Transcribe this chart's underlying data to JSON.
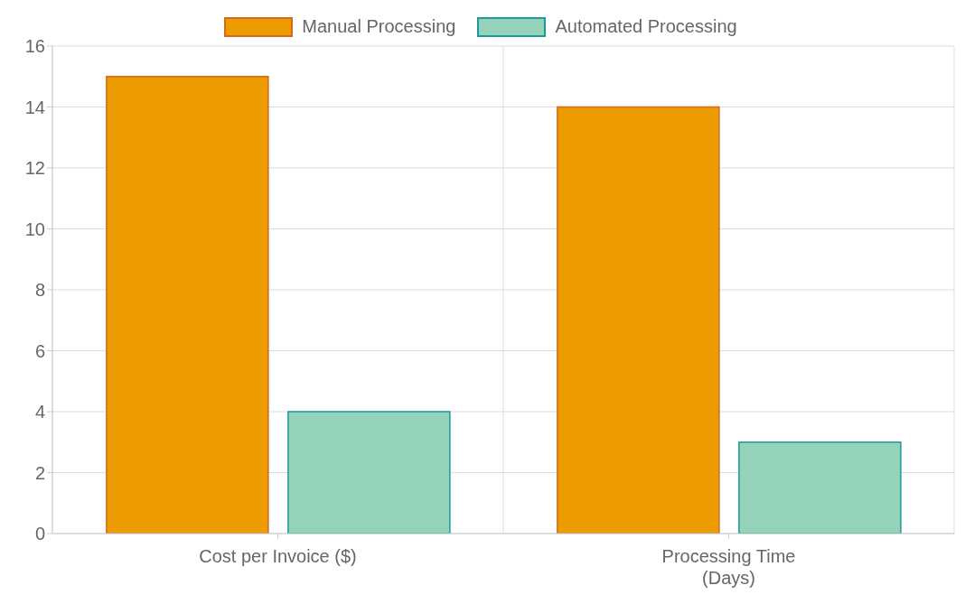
{
  "chart_data": {
    "type": "bar",
    "categories": [
      "Cost per Invoice ($)",
      "Processing Time\n(Days)"
    ],
    "series": [
      {
        "name": "Manual Processing",
        "color": "#ec9b00",
        "values": [
          15,
          14
        ]
      },
      {
        "name": "Automated Processing",
        "color": "#94d3b9",
        "values": [
          4,
          3
        ]
      }
    ],
    "ylim": [
      0,
      16
    ],
    "yticks": [
      0,
      2,
      4,
      6,
      8,
      10,
      12,
      14,
      16
    ],
    "grid": true,
    "legend": "top"
  }
}
